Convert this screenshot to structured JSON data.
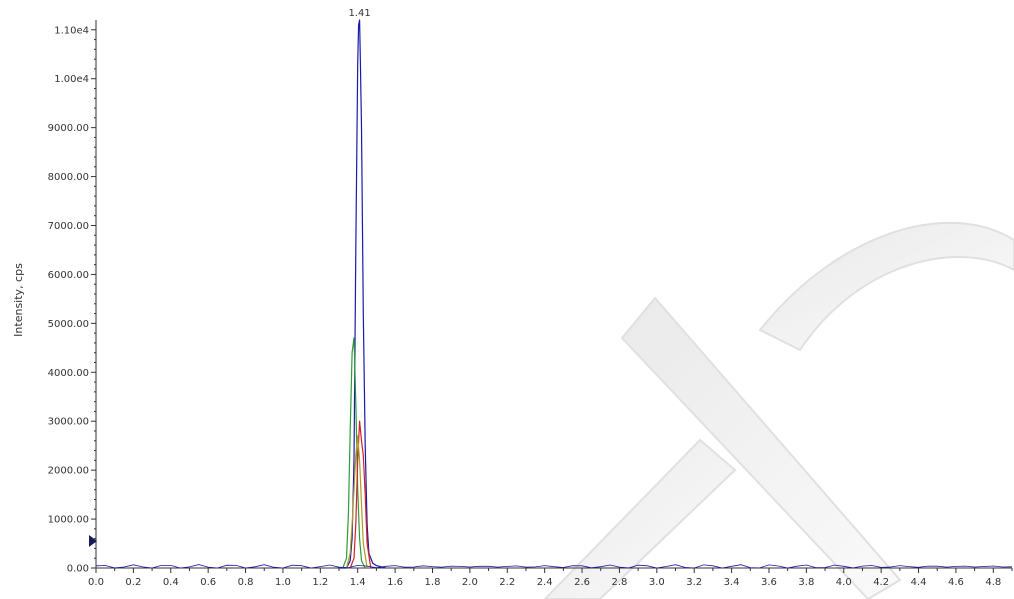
{
  "chart_data": {
    "type": "line",
    "title": "",
    "xlabel": "",
    "ylabel": "Intensity, cps",
    "xlim": [
      0.0,
      4.9
    ],
    "ylim": [
      0,
      11200
    ],
    "xticks": [
      0.0,
      0.2,
      0.4,
      0.6,
      0.8,
      1.0,
      1.2,
      1.4,
      1.6,
      1.8,
      2.0,
      2.2,
      2.4,
      2.6,
      2.8,
      3.0,
      3.2,
      3.4,
      3.6,
      3.8,
      4.0,
      4.2,
      4.4,
      4.6,
      4.8
    ],
    "xtick_labels": [
      "0.0",
      "0.2",
      "0.4",
      "0.6",
      "0.8",
      "1.0",
      "1.2",
      "1.4",
      "1.6",
      "1.8",
      "2.0",
      "2.2",
      "2.4",
      "2.6",
      "2.8",
      "3.0",
      "3.2",
      "3.4",
      "3.6",
      "3.8",
      "4.0",
      "4.2",
      "4.4",
      "4.6",
      "4.8"
    ],
    "yticks": [
      0,
      1000,
      2000,
      3000,
      4000,
      5000,
      6000,
      7000,
      8000,
      9000,
      10000,
      11000
    ],
    "ytick_labels": [
      "0.00",
      "1000.00",
      "2000.00",
      "3000.00",
      "4000.00",
      "5000.00",
      "6000.00",
      "7000.00",
      "8000.00",
      "9000.00",
      "1.00e4",
      "1.10e4"
    ],
    "annotations": [
      {
        "text": "1.41",
        "x": 1.41,
        "y": 11200
      }
    ],
    "grid": false,
    "legend": "none",
    "series": [
      {
        "color": "#1a1aa8",
        "x": [
          1.3,
          1.34,
          1.36,
          1.37,
          1.38,
          1.39,
          1.4,
          1.405,
          1.41,
          1.415,
          1.42,
          1.43,
          1.44,
          1.45,
          1.46,
          1.48,
          1.5,
          1.55
        ],
        "values": [
          0,
          0,
          150,
          600,
          2200,
          6500,
          10300,
          11100,
          11200,
          10200,
          9000,
          5200,
          2500,
          900,
          300,
          100,
          50,
          0
        ]
      },
      {
        "color": "#2e9a3a",
        "x": [
          1.32,
          1.34,
          1.35,
          1.36,
          1.37,
          1.38,
          1.39,
          1.4,
          1.41,
          1.42,
          1.44
        ],
        "values": [
          0,
          200,
          1100,
          2800,
          4400,
          4700,
          3400,
          1600,
          600,
          150,
          0
        ]
      },
      {
        "color": "#d42020",
        "x": [
          1.36,
          1.38,
          1.39,
          1.4,
          1.41,
          1.42,
          1.43,
          1.44,
          1.45,
          1.47
        ],
        "values": [
          0,
          200,
          900,
          2200,
          3000,
          2600,
          2300,
          1500,
          500,
          0
        ]
      },
      {
        "color": "#b09a2a",
        "x": [
          1.34,
          1.36,
          1.37,
          1.38,
          1.39,
          1.4,
          1.41,
          1.42,
          1.43,
          1.45
        ],
        "values": [
          0,
          300,
          900,
          1600,
          2300,
          2700,
          2200,
          1300,
          500,
          0
        ]
      }
    ]
  },
  "colors": {
    "axis": "#333333",
    "marker": "#1a1a5a"
  }
}
